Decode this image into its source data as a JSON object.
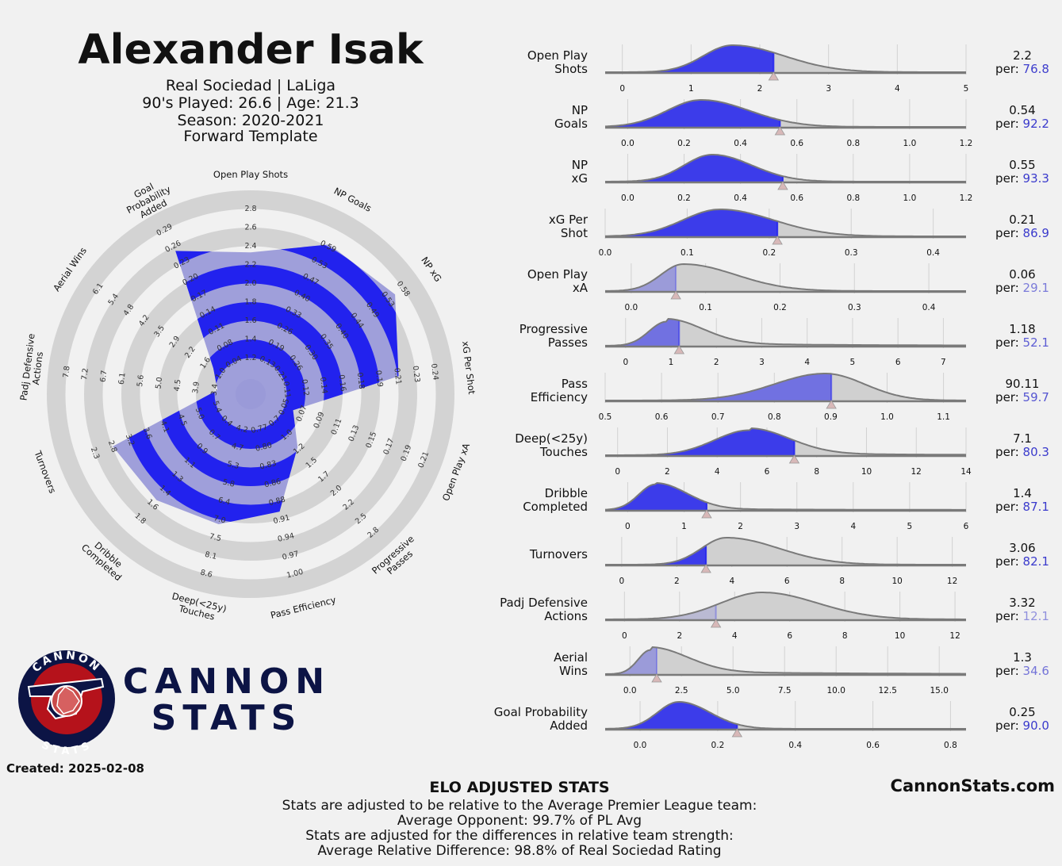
{
  "header": {
    "player_name": "Alexander Isak",
    "line1": "Real Sociedad | LaLiga",
    "line2": "90's Played: 26.6 | Age: 21.3",
    "line3": "Season: 2020-2021",
    "line4": "Forward Template"
  },
  "created": "Created: 2025-02-08",
  "logo": {
    "word1": "CANNON",
    "word2": "STATS",
    "ring_top": "CANNON",
    "ring_bottom": "STATS"
  },
  "site": "CannonStats.com",
  "footer": {
    "title": "ELO ADJUSTED STATS",
    "line1": "Stats are adjusted to be relative to the Average Premier League team:",
    "line2": "Average Opponent: 99.7% of PL Avg",
    "line3": "Stats are adjusted for the differences in relative team strength:",
    "line4": "Average Relative Difference: 98.8% of Real Sociedad Rating"
  },
  "colors": {
    "highlight": "#2222ee",
    "ring": "#d3d3d3",
    "density_fill": "#d0d0d0",
    "density_line": "#7a7a7a",
    "marker": "#d8b8b8",
    "percentile_text": "#3a3acc"
  },
  "percentile_prefix": "per:",
  "chart_data": [
    {
      "type": "radar",
      "metrics": [
        {
          "label": "Open Play Shots",
          "ticks": [
            "1.2",
            "1.4",
            "1.6",
            "1.8",
            "2.0",
            "2.2",
            "2.4",
            "2.6",
            "2.8"
          ],
          "range": [
            1.0,
            2.8
          ],
          "value": 2.2,
          "percentile": 76.8
        },
        {
          "label": "NP Goals",
          "ticks": [
            "0.13",
            "0.19",
            "0.26",
            "0.33",
            "0.40",
            "0.47",
            "0.53",
            "0.59"
          ],
          "range": [
            0.06,
            0.65
          ],
          "value": 0.54,
          "percentile": 92.2
        },
        {
          "label": "NP xG",
          "ticks": [
            "0.21",
            "0.26",
            "0.30",
            "0.35",
            "0.40",
            "0.44",
            "0.49",
            "0.53",
            "0.58"
          ],
          "range": [
            0.16,
            0.62
          ],
          "value": 0.55,
          "percentile": 93.3
        },
        {
          "label": "xG Per Shot",
          "ticks": [
            "0.11",
            "0.12",
            "0.14",
            "0.16",
            "0.18",
            "0.19",
            "0.21",
            "0.23",
            "0.24"
          ],
          "range": [
            0.09,
            0.26
          ],
          "value": 0.21,
          "percentile": 86.9
        },
        {
          "label": "Open Play xA",
          "ticks": [
            "0.05",
            "0.07",
            "0.09",
            "0.11",
            "0.13",
            "0.15",
            "0.17",
            "0.19",
            "0.21"
          ],
          "range": [
            0.03,
            0.23
          ],
          "value": 0.06,
          "percentile": 29.1
        },
        {
          "label": "Progressive Passes",
          "ticks": [
            "0.7",
            "1.0",
            "1.2",
            "1.5",
            "1.7",
            "2.0",
            "2.2",
            "2.5",
            "2.8"
          ],
          "range": [
            0.45,
            3.0
          ],
          "value": 1.18,
          "percentile": 52.1
        },
        {
          "label": "Pass Efficiency",
          "ticks": [
            "0.77",
            "0.80",
            "0.83",
            "0.86",
            "0.88",
            "0.91",
            "0.94",
            "0.97",
            "1.00"
          ],
          "range": [
            0.74,
            1.03
          ],
          "value": 0.9011,
          "percentile": 59.7
        },
        {
          "label": "Deep(<25y) Touches",
          "ticks": [
            "4.2",
            "4.7",
            "5.3",
            "5.8",
            "6.4",
            "7.0",
            "7.5",
            "8.1",
            "8.6"
          ],
          "range": [
            3.6,
            9.2
          ],
          "value": 7.1,
          "percentile": 80.3
        },
        {
          "label": "Dribble Completed",
          "ticks": [
            "0.4",
            "0.7",
            "0.9",
            "1.1",
            "1.3",
            "1.4",
            "1.6",
            "1.8"
          ],
          "range": [
            0.2,
            2.0
          ],
          "value": 1.4,
          "percentile": 87.1
        },
        {
          "label": "Turnovers",
          "ticks": [
            "5.4",
            "5.0",
            "4.5",
            "4.1",
            "3.6",
            "3.2",
            "2.8",
            "2.3"
          ],
          "range": [
            5.85,
            1.85
          ],
          "value": 3.06,
          "percentile": 82.1
        },
        {
          "label": "Padj Defensive Actions",
          "ticks": [
            "3.4",
            "3.9",
            "4.5",
            "5.0",
            "5.6",
            "6.1",
            "6.7",
            "7.2",
            "7.8"
          ],
          "range": [
            2.85,
            8.35
          ],
          "value": 3.32,
          "percentile": 12.1
        },
        {
          "label": "Aerial Wins",
          "ticks": [
            "1.0",
            "1.6",
            "2.2",
            "2.9",
            "3.5",
            "4.2",
            "4.8",
            "5.4",
            "6.1"
          ],
          "range": [
            0.35,
            6.7
          ],
          "value": 1.3,
          "percentile": 34.6
        },
        {
          "label": "Goal Probability Added",
          "ticks": [
            "0.04",
            "0.08",
            "0.11",
            "0.14",
            "0.17",
            "0.20",
            "0.23",
            "0.26",
            "0.29"
          ],
          "range": [
            0.01,
            0.32
          ],
          "value": 0.25,
          "percentile": 90.0
        }
      ]
    },
    {
      "type": "area",
      "description_free": true,
      "metrics": [
        {
          "label": [
            "Open Play",
            "Shots"
          ],
          "value": "2.2",
          "percentile": "76.8",
          "x": 2.2,
          "xlim": [
            -0.25,
            5
          ],
          "ticks": [
            0,
            1,
            2,
            3,
            4,
            5
          ],
          "tick_labels": [
            "0",
            "1",
            "2",
            "3",
            "4",
            "5"
          ],
          "mode": 1.6,
          "sdl": 0.42,
          "sdr": 0.75,
          "tail": 0
        },
        {
          "label": [
            "NP",
            "Goals"
          ],
          "value": "0.54",
          "percentile": "92.2",
          "x": 0.54,
          "xlim": [
            -0.08,
            1.2
          ],
          "ticks": [
            0,
            0.2,
            0.4,
            0.6,
            0.8,
            1.0,
            1.2
          ],
          "tick_labels": [
            "0.0",
            "0.2",
            "0.4",
            "0.6",
            "0.8",
            "1.0",
            "1.2"
          ],
          "mode": 0.26,
          "sdl": 0.12,
          "sdr": 0.17,
          "tail": 0
        },
        {
          "label": [
            "NP",
            "xG"
          ],
          "value": "0.55",
          "percentile": "93.3",
          "x": 0.55,
          "xlim": [
            -0.08,
            1.2
          ],
          "ticks": [
            0,
            0.2,
            0.4,
            0.6,
            0.8,
            1.0,
            1.2
          ],
          "tick_labels": [
            "0.0",
            "0.2",
            "0.4",
            "0.6",
            "0.8",
            "1.0",
            "1.2"
          ],
          "mode": 0.3,
          "sdl": 0.1,
          "sdr": 0.14,
          "tail": 0
        },
        {
          "label": [
            "xG Per",
            "Shot"
          ],
          "value": "0.21",
          "percentile": "86.9",
          "x": 0.21,
          "xlim": [
            0.0,
            0.44
          ],
          "ticks": [
            0,
            0.1,
            0.2,
            0.3,
            0.4
          ],
          "tick_labels": [
            "0.0",
            "0.1",
            "0.2",
            "0.3",
            "0.4"
          ],
          "mode": 0.14,
          "sdl": 0.045,
          "sdr": 0.065,
          "tail": 0
        },
        {
          "label": [
            "Open Play",
            "xA"
          ],
          "value": "0.06",
          "percentile": "29.1",
          "x": 0.06,
          "xlim": [
            -0.035,
            0.45
          ],
          "ticks": [
            0,
            0.1,
            0.2,
            0.3,
            0.4
          ],
          "tick_labels": [
            "0.0",
            "0.1",
            "0.2",
            "0.3",
            "0.4"
          ],
          "mode": 0.07,
          "sdl": 0.03,
          "sdr": 0.07,
          "tail": 0
        },
        {
          "label": [
            "Progressive",
            "Passes"
          ],
          "value": "1.18",
          "percentile": "52.1",
          "x": 1.18,
          "xlim": [
            -0.45,
            7.5
          ],
          "ticks": [
            0,
            1,
            2,
            3,
            4,
            5,
            6,
            7
          ],
          "tick_labels": [
            "0",
            "1",
            "2",
            "3",
            "4",
            "5",
            "6",
            "7"
          ],
          "mode": 0.9,
          "sdl": 0.38,
          "sdr": 0.8,
          "tail": 0.12
        },
        {
          "label": [
            "Pass",
            "Efficiency"
          ],
          "value": "90.11",
          "percentile": "59.7",
          "x": 0.9011,
          "xlim": [
            0.5,
            1.14
          ],
          "ticks": [
            0.5,
            0.6,
            0.7,
            0.8,
            0.9,
            1.0,
            1.1
          ],
          "tick_labels": [
            "0.5",
            "0.6",
            "0.7",
            "0.8",
            "0.9",
            "1.0",
            "1.1"
          ],
          "mode": 0.89,
          "sdl": 0.09,
          "sdr": 0.07,
          "tail": 0
        },
        {
          "label": [
            "Deep(<25y)",
            "Touches"
          ],
          "value": "7.1",
          "percentile": "80.3",
          "x": 7.1,
          "xlim": [
            -0.5,
            14
          ],
          "ticks": [
            0,
            2,
            4,
            6,
            8,
            10,
            12,
            14
          ],
          "tick_labels": [
            "0",
            "2",
            "4",
            "6",
            "8",
            "10",
            "12",
            "14"
          ],
          "mode": 5.3,
          "sdl": 1.4,
          "sdr": 1.6,
          "tail": 0.08
        },
        {
          "label": [
            "Dribble",
            "Completed"
          ],
          "value": "1.4",
          "percentile": "87.1",
          "x": 1.4,
          "xlim": [
            -0.4,
            6
          ],
          "ticks": [
            0,
            1,
            2,
            3,
            4,
            5,
            6
          ],
          "tick_labels": [
            "0",
            "1",
            "2",
            "3",
            "4",
            "5",
            "6"
          ],
          "mode": 0.5,
          "sdl": 0.3,
          "sdr": 0.55,
          "tail": 0.05
        },
        {
          "label": [
            "Turnovers"
          ],
          "value": "3.06",
          "percentile": "82.1",
          "x": 3.06,
          "xlim": [
            -0.6,
            12.5
          ],
          "ticks": [
            0,
            2,
            4,
            6,
            8,
            10,
            12
          ],
          "tick_labels": [
            "0",
            "2",
            "4",
            "6",
            "8",
            "10",
            "12"
          ],
          "mode": 3.8,
          "sdl": 0.9,
          "sdr": 1.9,
          "tail": 0
        },
        {
          "label": [
            "Padj Defensive",
            "Actions"
          ],
          "value": "3.32",
          "percentile": "12.1",
          "x": 3.32,
          "xlim": [
            -0.7,
            12.4
          ],
          "ticks": [
            0,
            2,
            4,
            6,
            8,
            10,
            12
          ],
          "tick_labels": [
            "0",
            "2",
            "4",
            "6",
            "8",
            "10",
            "12"
          ],
          "mode": 5.0,
          "sdl": 1.5,
          "sdr": 2.0,
          "tail": 0
        },
        {
          "label": [
            "Aerial",
            "Wins"
          ],
          "value": "1.3",
          "percentile": "34.6",
          "x": 1.3,
          "xlim": [
            -1.2,
            16.3
          ],
          "ticks": [
            0,
            2.5,
            5,
            7.5,
            10,
            12.5,
            15
          ],
          "tick_labels": [
            "0.0",
            "2.5",
            "5.0",
            "7.5",
            "10.0",
            "12.5",
            "15.0"
          ],
          "mode": 1.0,
          "sdl": 0.6,
          "sdr": 1.8,
          "tail": 0.12
        },
        {
          "label": [
            "Goal Probability",
            "Added"
          ],
          "value": "0.25",
          "percentile": "90.0",
          "x": 0.25,
          "xlim": [
            -0.09,
            0.84
          ],
          "ticks": [
            0,
            0.2,
            0.4,
            0.6,
            0.8
          ],
          "tick_labels": [
            "0.0",
            "0.2",
            "0.4",
            "0.6",
            "0.8"
          ],
          "mode": 0.1,
          "sdl": 0.055,
          "sdr": 0.08,
          "tail": 0
        }
      ]
    }
  ]
}
